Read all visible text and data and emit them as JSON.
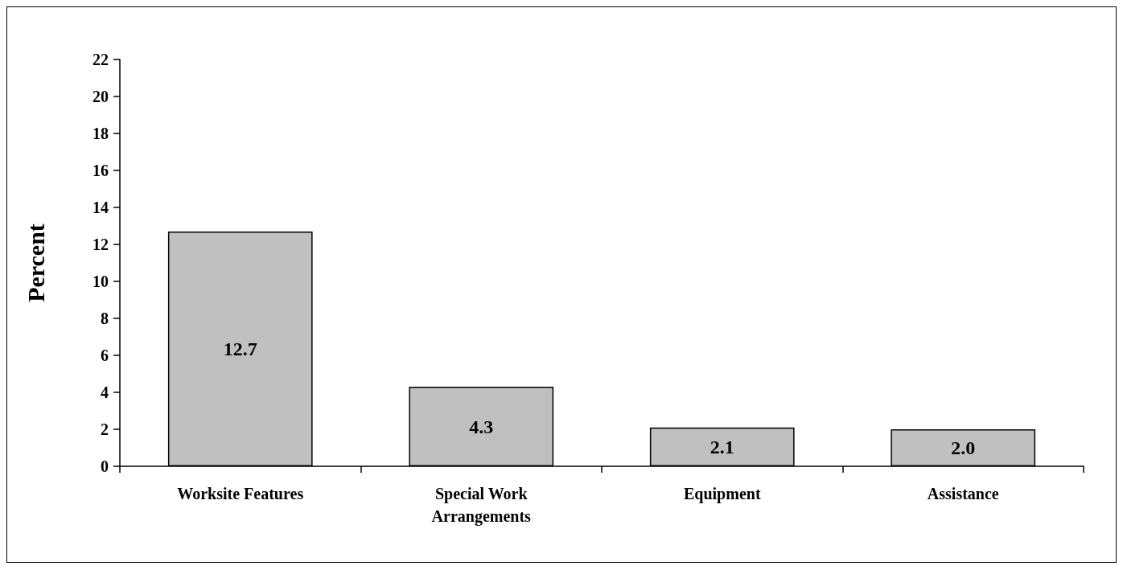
{
  "chart_data": {
    "type": "bar",
    "ylabel": "Percent",
    "categories": [
      "Worksite Features",
      "Special Work\nArrangements",
      "Equipment",
      "Assistance"
    ],
    "values": [
      12.7,
      4.3,
      2.1,
      2.0
    ],
    "value_labels": [
      "12.7",
      "4.3",
      "2.1",
      "2.0"
    ],
    "color": "#c0c0c0",
    "ylim": [
      0,
      22
    ],
    "yticks": [
      0,
      2,
      4,
      6,
      8,
      10,
      12,
      14,
      16,
      18,
      20,
      22
    ],
    "grid": false
  }
}
